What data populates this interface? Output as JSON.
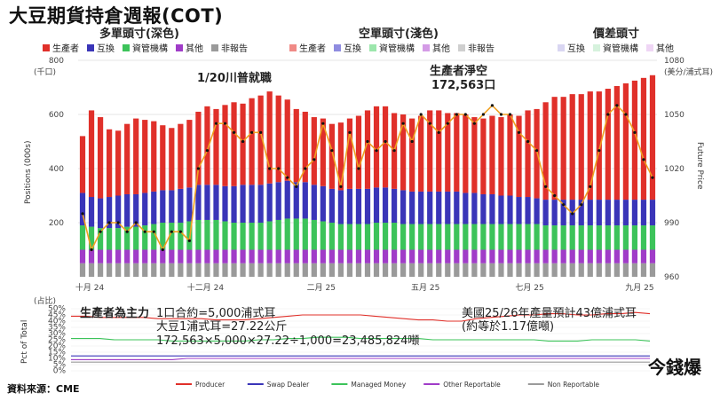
{
  "title": "大豆期貨持倉週報(COT)",
  "source_note": "資料來源：CME",
  "logo_text": "今錢爆",
  "legends": {
    "long": {
      "title": "多單頭寸(深色)",
      "items": [
        {
          "label": "生產者",
          "color": "#e0302a"
        },
        {
          "label": "互換",
          "color": "#3a35b8"
        },
        {
          "label": "資管機構",
          "color": "#3cc35a"
        },
        {
          "label": "其他",
          "color": "#a03cc8"
        },
        {
          "label": "非報告",
          "color": "#9a9a9a"
        }
      ]
    },
    "short": {
      "title": "空單頭寸(淺色)",
      "items": [
        {
          "label": "生產者",
          "color": "#f08a86"
        },
        {
          "label": "互換",
          "color": "#8f8ce0"
        },
        {
          "label": "資管機構",
          "color": "#9ce6ac"
        },
        {
          "label": "其他",
          "color": "#d49be6"
        },
        {
          "label": "非報告",
          "color": "#cfcfcf"
        }
      ]
    },
    "spread": {
      "title": "價差頭寸",
      "items": [
        {
          "label": "互換",
          "color": "#d9d6f2"
        },
        {
          "label": "資管機構",
          "color": "#d6f2dd"
        },
        {
          "label": "其他",
          "color": "#efd6f5"
        }
      ]
    }
  },
  "annotations": {
    "trump": "1/20川普就職",
    "producer_net_short": "生產者淨空",
    "producer_net_short_value": "172,563口",
    "contract_1": "1口合約=5,000浦式耳",
    "contract_2": "大豆1浦式耳=27.22公斤",
    "contract_3": "172,563×5,000×27.22÷1,000=23,485,824噸",
    "us_prod_1": "美國25/26年產量預計43億浦式耳",
    "us_prod_2": "(約等於1.17億噸)",
    "producer_main": "生產者為主力"
  },
  "chart_data": [
    {
      "type": "bar",
      "title": "",
      "y_unit_label": "(千口)",
      "ylabel": "Positions (000s)",
      "y2_unit_label": "(美分/浦式耳)",
      "y2label": "Future Price",
      "x_tick_labels": [
        "十月 24",
        "十二月 24",
        "二月 25",
        "五月 25",
        "七月 25",
        "九月 25"
      ],
      "ylim": [
        0,
        800
      ],
      "yticks": [
        200,
        400,
        600,
        800
      ],
      "y2lim": [
        960,
        1080
      ],
      "y2ticks": [
        960,
        990,
        1020,
        1050,
        1080
      ],
      "series": [
        {
          "name": "生產者",
          "color": "#e0302a",
          "values": [
            210,
            320,
            300,
            250,
            240,
            260,
            280,
            270,
            260,
            240,
            230,
            240,
            250,
            270,
            290,
            280,
            300,
            310,
            300,
            320,
            330,
            340,
            320,
            300,
            270,
            260,
            250,
            250,
            240,
            250,
            260,
            270,
            290,
            300,
            300,
            280,
            280,
            270,
            280,
            300,
            300,
            290,
            290,
            290,
            280,
            280,
            290,
            290,
            300,
            300,
            320,
            330,
            360,
            380,
            380,
            390,
            390,
            400,
            400,
            410,
            420,
            430,
            440,
            450,
            460
          ]
        },
        {
          "name": "互換",
          "color": "#3a35b8",
          "values": [
            120,
            110,
            110,
            115,
            120,
            120,
            120,
            120,
            120,
            120,
            120,
            125,
            125,
            130,
            130,
            130,
            130,
            135,
            140,
            140,
            140,
            140,
            140,
            140,
            135,
            135,
            130,
            130,
            125,
            125,
            130,
            130,
            130,
            130,
            130,
            125,
            125,
            120,
            120,
            120,
            120,
            120,
            120,
            115,
            115,
            110,
            110,
            105,
            105,
            100,
            100,
            95,
            95,
            95,
            95,
            95,
            95,
            95,
            95,
            95,
            95,
            95,
            95,
            95,
            95
          ]
        },
        {
          "name": "資管機構",
          "color": "#3cc35a",
          "values": [
            90,
            85,
            80,
            80,
            80,
            85,
            85,
            90,
            95,
            100,
            100,
            100,
            105,
            110,
            110,
            110,
            105,
            100,
            100,
            100,
            100,
            105,
            110,
            115,
            115,
            115,
            110,
            105,
            100,
            95,
            95,
            95,
            95,
            100,
            100,
            100,
            95,
            95,
            95,
            95,
            95,
            95,
            95,
            95,
            95,
            95,
            95,
            95,
            95,
            95,
            95,
            95,
            90,
            90,
            90,
            90,
            90,
            90,
            90,
            90,
            90,
            90,
            90,
            90,
            90
          ]
        },
        {
          "name": "其他",
          "color": "#a03cc8",
          "values": [
            50,
            50,
            50,
            50,
            50,
            50,
            50,
            50,
            50,
            50,
            50,
            50,
            50,
            50,
            50,
            50,
            50,
            50,
            50,
            50,
            50,
            50,
            50,
            50,
            50,
            50,
            50,
            50,
            50,
            50,
            50,
            50,
            50,
            50,
            50,
            50,
            50,
            50,
            50,
            50,
            50,
            50,
            50,
            50,
            50,
            50,
            50,
            50,
            50,
            50,
            50,
            50,
            50,
            50,
            50,
            50,
            50,
            50,
            50,
            50,
            50,
            50,
            50,
            50,
            50
          ]
        },
        {
          "name": "非報告",
          "color": "#9a9a9a",
          "values": [
            50,
            50,
            50,
            50,
            50,
            50,
            50,
            50,
            50,
            50,
            50,
            50,
            50,
            50,
            50,
            50,
            50,
            50,
            50,
            50,
            50,
            50,
            50,
            50,
            50,
            50,
            50,
            50,
            50,
            50,
            50,
            50,
            50,
            50,
            50,
            50,
            50,
            50,
            50,
            50,
            50,
            50,
            50,
            50,
            50,
            50,
            50,
            50,
            50,
            50,
            50,
            50,
            50,
            50,
            50,
            50,
            50,
            50,
            50,
            50,
            50,
            50,
            50,
            50,
            50
          ]
        }
      ],
      "price_line": {
        "color": "#f0a020",
        "values": [
          995,
          975,
          985,
          990,
          990,
          985,
          990,
          985,
          985,
          975,
          985,
          985,
          980,
          1020,
          1030,
          1045,
          1045,
          1040,
          1035,
          1040,
          1040,
          1020,
          1020,
          1015,
          1010,
          1020,
          1025,
          1045,
          1030,
          1010,
          1040,
          1020,
          1035,
          1030,
          1035,
          1030,
          1045,
          1035,
          1050,
          1045,
          1040,
          1045,
          1050,
          1050,
          1045,
          1050,
          1055,
          1050,
          1050,
          1040,
          1035,
          1030,
          1010,
          1005,
          1000,
          995,
          1000,
          1010,
          1030,
          1050,
          1055,
          1050,
          1040,
          1025,
          1015
        ]
      }
    },
    {
      "type": "line",
      "title": "",
      "y_unit_label": "(占比)",
      "ylabel": "Pct of Total",
      "ylim": [
        0,
        50
      ],
      "yticks": [
        "0%",
        "5%",
        "10%",
        "15%",
        "20%",
        "25%",
        "30%",
        "35%",
        "40%",
        "45%",
        "50%"
      ],
      "series": [
        {
          "name": "Producer",
          "color": "#e0302a",
          "values": [
            44,
            44,
            43,
            43,
            43,
            43,
            42,
            42,
            42,
            42,
            41,
            41,
            41,
            42,
            43,
            44,
            45,
            45,
            45,
            45,
            45,
            44,
            43,
            42,
            41,
            41,
            40,
            40,
            42,
            43,
            44,
            45,
            45,
            46,
            46,
            45,
            45,
            46,
            46,
            47,
            46
          ]
        },
        {
          "name": "Swap Dealer",
          "color": "#3a35b8",
          "values": [
            12,
            12,
            12,
            12,
            12,
            12,
            12,
            12,
            12,
            12,
            12,
            12,
            12,
            12,
            12,
            12,
            12,
            12,
            12,
            12,
            12,
            12,
            12,
            12,
            12,
            12,
            12,
            12,
            12,
            12,
            12,
            12,
            12,
            12,
            12,
            12,
            12,
            12,
            12,
            12,
            12
          ]
        },
        {
          "name": "Managed Money",
          "color": "#3cc35a",
          "values": [
            26,
            26,
            26,
            25,
            25,
            25,
            25,
            24,
            24,
            24,
            24,
            24,
            24,
            25,
            25,
            26,
            26,
            27,
            27,
            27,
            26,
            26,
            26,
            26,
            26,
            25,
            25,
            25,
            25,
            25,
            25,
            25,
            25,
            24,
            24,
            24,
            25,
            25,
            25,
            25,
            24
          ]
        },
        {
          "name": "Other Reportable",
          "color": "#a03cc8",
          "values": [
            9,
            9,
            9,
            9,
            9,
            9,
            9,
            9,
            10,
            10,
            10,
            10,
            10,
            10,
            10,
            10,
            10,
            10,
            10,
            10,
            10,
            10,
            10,
            10,
            10,
            10,
            10,
            10,
            10,
            10,
            10,
            10,
            10,
            10,
            10,
            10,
            10,
            10,
            10,
            10,
            10
          ]
        },
        {
          "name": "Non Reportable",
          "color": "#9a9a9a",
          "values": [
            7,
            7,
            7,
            7,
            7,
            7,
            7,
            7,
            7,
            7,
            7,
            7,
            7,
            7,
            7,
            7,
            7,
            7,
            7,
            7,
            7,
            7,
            7,
            7,
            7,
            7,
            7,
            7,
            7,
            7,
            7,
            7,
            7,
            7,
            7,
            7,
            7,
            7,
            7,
            7,
            7
          ]
        }
      ]
    }
  ]
}
